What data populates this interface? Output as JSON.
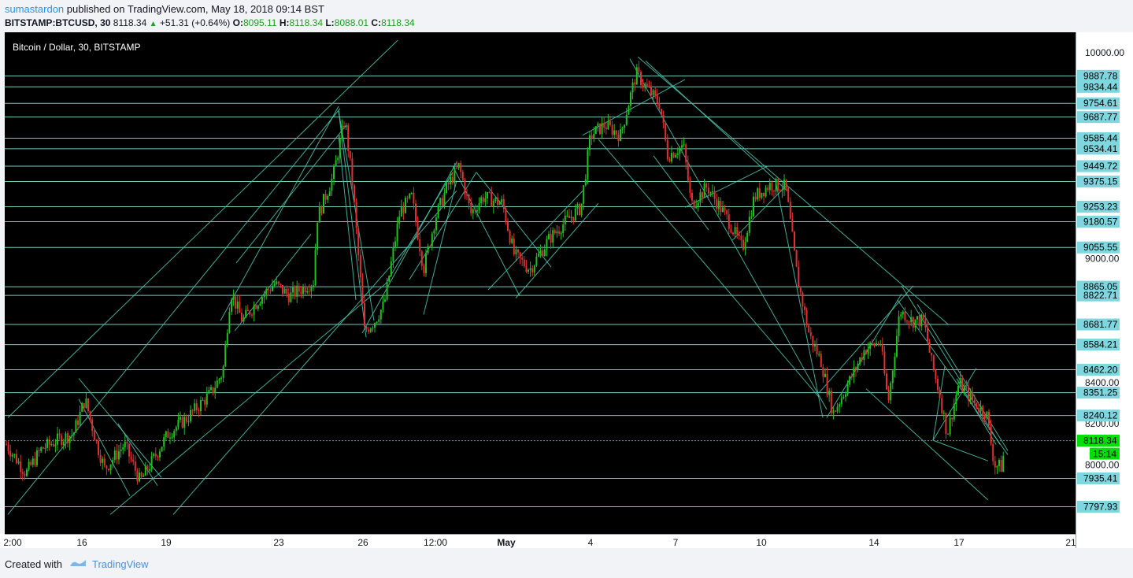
{
  "header": {
    "author": "sumastardon",
    "published_text": " published on TradingView.com, May 18, 2018 09:14 BST",
    "symbol": "BITSTAMP:BTCUSD, 30",
    "last": "8118.34",
    "change": "+51.31 (+0.64%)",
    "o_label": "O:",
    "o_value": "8095.11",
    "h_label": "H:",
    "h_value": "8118.34",
    "l_label": "L:",
    "l_value": "8088.01",
    "c_label": "C:",
    "c_value": "8118.34"
  },
  "footer": {
    "created_with": "Created with",
    "brand": "TradingView"
  },
  "colors": {
    "background": "#000000",
    "line": "#48c9b0",
    "level_label": "#7ed6df",
    "price_tag": "#00e000",
    "up_candle": "#20c020",
    "down_candle": "#e03030"
  },
  "chart_data": {
    "type": "candlestick",
    "title": "Bitcoin / Dollar, 30, BITSTAMP",
    "ylim": [
      7750,
      10080
    ],
    "y_ticks": [
      "10000.00",
      "9800.00",
      "9600.00",
      "9400.00",
      "9200.00",
      "9000.00",
      "8800.00",
      "8600.00",
      "8400.00",
      "8200.00",
      "8000.00"
    ],
    "y_ticks_visible": [
      "10000.00",
      "9000.00",
      "8400.00",
      "8200.00",
      "8000.00"
    ],
    "x_ticks": [
      "2:00",
      "16",
      "19",
      "23",
      "26",
      "12:00",
      "May",
      "4",
      "7",
      "10",
      "14",
      "17",
      "21"
    ],
    "price_levels": [
      "9887.78",
      "9834.44",
      "9754.61",
      "9687.77",
      "9585.44",
      "9534.41",
      "9449.72",
      "9375.15",
      "9253.23",
      "9180.57",
      "9055.55",
      "8865.05",
      "8822.71",
      "8681.77",
      "8584.21",
      "8462.20",
      "8351.25",
      "8240.12",
      "7935.41",
      "7797.93"
    ],
    "current_price": "8118.34",
    "countdown": "15:14",
    "close_path": [
      [
        0,
        8100
      ],
      [
        25,
        7960
      ],
      [
        45,
        8080
      ],
      [
        70,
        8130
      ],
      [
        85,
        8150
      ],
      [
        100,
        8320
      ],
      [
        115,
        8100
      ],
      [
        125,
        7980
      ],
      [
        150,
        8100
      ],
      [
        170,
        7920
      ],
      [
        190,
        8050
      ],
      [
        205,
        8150
      ],
      [
        230,
        8230
      ],
      [
        260,
        8350
      ],
      [
        275,
        8450
      ],
      [
        285,
        8840
      ],
      [
        300,
        8700
      ],
      [
        320,
        8800
      ],
      [
        340,
        8880
      ],
      [
        360,
        8820
      ],
      [
        390,
        8890
      ],
      [
        395,
        9200
      ],
      [
        415,
        9400
      ],
      [
        430,
        9680
      ],
      [
        440,
        9350
      ],
      [
        455,
        8650
      ],
      [
        468,
        8700
      ],
      [
        480,
        8780
      ],
      [
        500,
        9230
      ],
      [
        515,
        9300
      ],
      [
        530,
        8950
      ],
      [
        545,
        9200
      ],
      [
        560,
        9350
      ],
      [
        575,
        9450
      ],
      [
        590,
        9220
      ],
      [
        605,
        9300
      ],
      [
        630,
        9270
      ],
      [
        645,
        9020
      ],
      [
        665,
        8950
      ],
      [
        690,
        9100
      ],
      [
        710,
        9180
      ],
      [
        730,
        9250
      ],
      [
        742,
        9600
      ],
      [
        760,
        9650
      ],
      [
        780,
        9600
      ],
      [
        800,
        9900
      ],
      [
        815,
        9820
      ],
      [
        830,
        9750
      ],
      [
        840,
        9500
      ],
      [
        860,
        9550
      ],
      [
        870,
        9260
      ],
      [
        890,
        9350
      ],
      [
        915,
        9200
      ],
      [
        935,
        9050
      ],
      [
        950,
        9300
      ],
      [
        970,
        9360
      ],
      [
        990,
        9350
      ],
      [
        1005,
        8900
      ],
      [
        1020,
        8630
      ],
      [
        1035,
        8500
      ],
      [
        1050,
        8250
      ],
      [
        1070,
        8400
      ],
      [
        1090,
        8560
      ],
      [
        1110,
        8600
      ],
      [
        1120,
        8300
      ],
      [
        1135,
        8750
      ],
      [
        1150,
        8700
      ],
      [
        1165,
        8700
      ],
      [
        1175,
        8500
      ],
      [
        1185,
        8350
      ],
      [
        1195,
        8150
      ],
      [
        1210,
        8400
      ],
      [
        1230,
        8300
      ],
      [
        1245,
        8250
      ],
      [
        1255,
        8000
      ],
      [
        1265,
        7990
      ],
      [
        1268,
        8118
      ]
    ]
  }
}
